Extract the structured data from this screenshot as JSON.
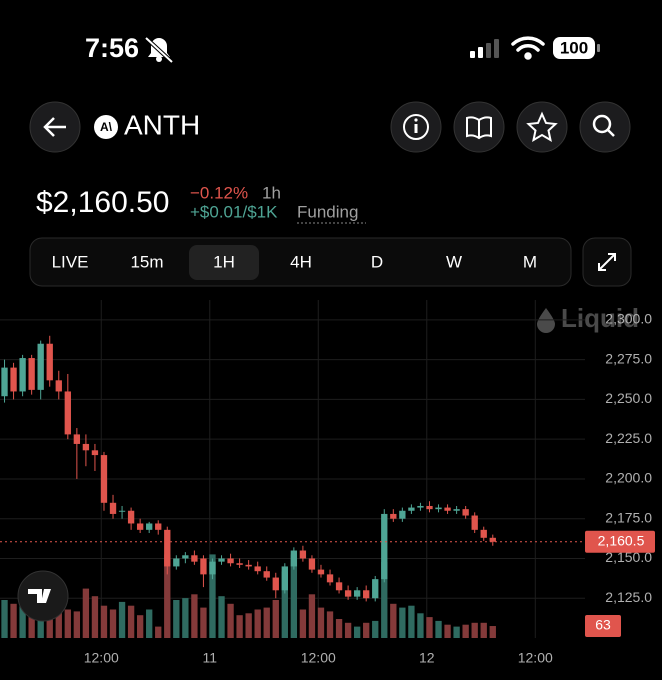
{
  "status_bar": {
    "time": "7:56",
    "battery": "100"
  },
  "header": {
    "symbol": "ANTH"
  },
  "price": {
    "value": "$2,160.50",
    "change": "−0.12%",
    "change_period": "1h",
    "funding_rate": "+$0.01/$1K",
    "funding_label": "Funding"
  },
  "tabs": [
    "LIVE",
    "15m",
    "1H",
    "4H",
    "D",
    "W",
    "M"
  ],
  "selected_tab_index": 2,
  "watermark": "Liquid",
  "chart_data": {
    "type": "candlestick",
    "up_color": "#4fa595",
    "down_color": "#e0554d",
    "volume_up_color": "#2f6b61",
    "volume_down_color": "#843a3a",
    "x": [
      0.5,
      1.5,
      2.5,
      3.5,
      4.5,
      5.5,
      6.5,
      7.5,
      8.5,
      9.5,
      10.5,
      11.5,
      12.5,
      13.5,
      14.5,
      15.5,
      16.5,
      17.5,
      18.5,
      19.5,
      20.5,
      21.5,
      22.5,
      23.5,
      24.5,
      25.5,
      26.5,
      27.5,
      28.5,
      29.5,
      30.5,
      31.5,
      32.5,
      33.5,
      34.5,
      35.5,
      36.5,
      37.5,
      38.5,
      39.5,
      40.5,
      41.5,
      42.5,
      43.5,
      44.5,
      45.5,
      46.5,
      47.5,
      48.5,
      49.5,
      50.5,
      51.5,
      52.5,
      53.5,
      54.5
    ],
    "open": [
      2252,
      2270,
      2255,
      2276,
      2256,
      2285,
      2262,
      2255,
      2228,
      2222,
      2218,
      2215,
      2185,
      2180,
      2180,
      2172,
      2168,
      2172,
      2168,
      2145,
      2150,
      2152,
      2150,
      2140,
      2148,
      2150,
      2147,
      2146,
      2145,
      2142,
      2138,
      2130,
      2145,
      2155,
      2150,
      2143,
      2140,
      2135,
      2130,
      2126,
      2130,
      2125,
      2137,
      2178,
      2175,
      2180,
      2182,
      2183,
      2181,
      2182,
      2180,
      2181,
      2177,
      2168,
      2163
    ],
    "high": [
      2275,
      2273,
      2278,
      2278,
      2287,
      2290,
      2268,
      2266,
      2232,
      2228,
      2222,
      2217,
      2190,
      2183,
      2182,
      2175,
      2173,
      2174,
      2170,
      2152,
      2154,
      2155,
      2152,
      2150,
      2152,
      2153,
      2150,
      2149,
      2148,
      2145,
      2141,
      2147,
      2157,
      2158,
      2152,
      2146,
      2143,
      2138,
      2133,
      2132,
      2133,
      2139,
      2181,
      2181,
      2182,
      2184,
      2185,
      2186,
      2184,
      2184,
      2183,
      2183,
      2179,
      2170,
      2165
    ],
    "low": [
      2248,
      2250,
      2252,
      2253,
      2250,
      2258,
      2250,
      2225,
      2200,
      2208,
      2205,
      2180,
      2175,
      2175,
      2168,
      2166,
      2166,
      2165,
      2140,
      2143,
      2147,
      2146,
      2132,
      2137,
      2146,
      2145,
      2144,
      2143,
      2140,
      2136,
      2125,
      2128,
      2143,
      2148,
      2141,
      2138,
      2133,
      2128,
      2124,
      2124,
      2123,
      2123,
      2135,
      2173,
      2173,
      2178,
      2180,
      2179,
      2179,
      2178,
      2178,
      2175,
      2166,
      2161,
      2158
    ],
    "close": [
      2270,
      2255,
      2276,
      2256,
      2285,
      2262,
      2255,
      2228,
      2222,
      2218,
      2215,
      2185,
      2178,
      2180,
      2172,
      2168,
      2172,
      2168,
      2145,
      2150,
      2152,
      2148,
      2140,
      2148,
      2150,
      2147,
      2146,
      2145,
      2142,
      2138,
      2130,
      2145,
      2155,
      2150,
      2143,
      2140,
      2135,
      2130,
      2126,
      2130,
      2125,
      2137,
      2178,
      2175,
      2180,
      2182,
      2183,
      2181,
      2182,
      2180,
      2181,
      2177,
      2168,
      2163,
      2160.5
    ],
    "volume": [
      200,
      180,
      210,
      170,
      230,
      190,
      160,
      150,
      140,
      260,
      220,
      170,
      150,
      190,
      170,
      120,
      150,
      60,
      440,
      200,
      210,
      230,
      160,
      440,
      220,
      180,
      120,
      130,
      150,
      160,
      200,
      350,
      440,
      150,
      230,
      160,
      140,
      100,
      80,
      60,
      80,
      90,
      400,
      180,
      160,
      170,
      130,
      110,
      90,
      70,
      60,
      70,
      80,
      80,
      63
    ],
    "xlim": [
      0,
      64.7
    ],
    "ylim": [
      2100,
      2312.5
    ],
    "vlim": [
      0,
      500
    ],
    "yticks": [
      {
        "value": 2125,
        "label": "2,125.0"
      },
      {
        "value": 2150,
        "label": "2,150.0"
      },
      {
        "value": 2175,
        "label": "2,175.0"
      },
      {
        "value": 2200,
        "label": "2,200.0"
      },
      {
        "value": 2225,
        "label": "2,225.0"
      },
      {
        "value": 2250,
        "label": "2,250.0"
      },
      {
        "value": 2275,
        "label": "2,275.0"
      },
      {
        "value": 2300,
        "label": "2,300.0"
      }
    ],
    "xticks": [
      {
        "value": 11.2,
        "label": "12:00"
      },
      {
        "value": 23.2,
        "label": "11"
      },
      {
        "value": 35.2,
        "label": "12:00"
      },
      {
        "value": 47.2,
        "label": "12"
      },
      {
        "value": 59.2,
        "label": "12:00"
      }
    ],
    "last_price": {
      "value": 2160.5,
      "label": "2,160.5"
    },
    "grid": true
  }
}
